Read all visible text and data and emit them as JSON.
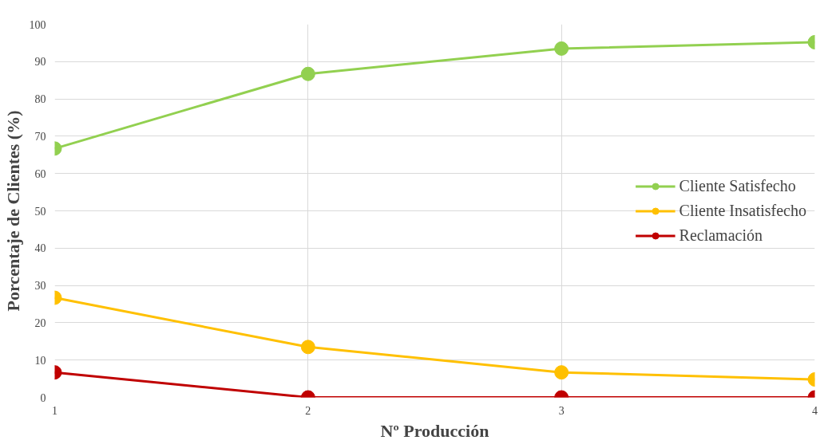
{
  "chart_data": {
    "type": "line",
    "xlabel": "Nº Producción",
    "ylabel": "Porcentaje de Clientes (%)",
    "x": [
      1,
      2,
      3,
      4
    ],
    "series": [
      {
        "name": "Cliente Satisfecho",
        "color": "#92d050",
        "values": [
          66.7,
          86.7,
          93.5,
          95.2
        ]
      },
      {
        "name": "Cliente Insatisfecho",
        "color": "#ffc000",
        "values": [
          26.7,
          13.5,
          6.7,
          4.8
        ]
      },
      {
        "name": "Reclamación",
        "color": "#c00000",
        "values": [
          6.7,
          0,
          0,
          0
        ]
      }
    ],
    "xlim": [
      1,
      4
    ],
    "xticks": [
      1,
      2,
      3,
      4
    ],
    "ylim": [
      0,
      100
    ],
    "yticks": [
      0,
      10,
      20,
      30,
      40,
      50,
      60,
      70,
      80,
      90,
      100
    ],
    "grid": true,
    "legend": "right",
    "marker": "circle",
    "line_style": "solid"
  }
}
